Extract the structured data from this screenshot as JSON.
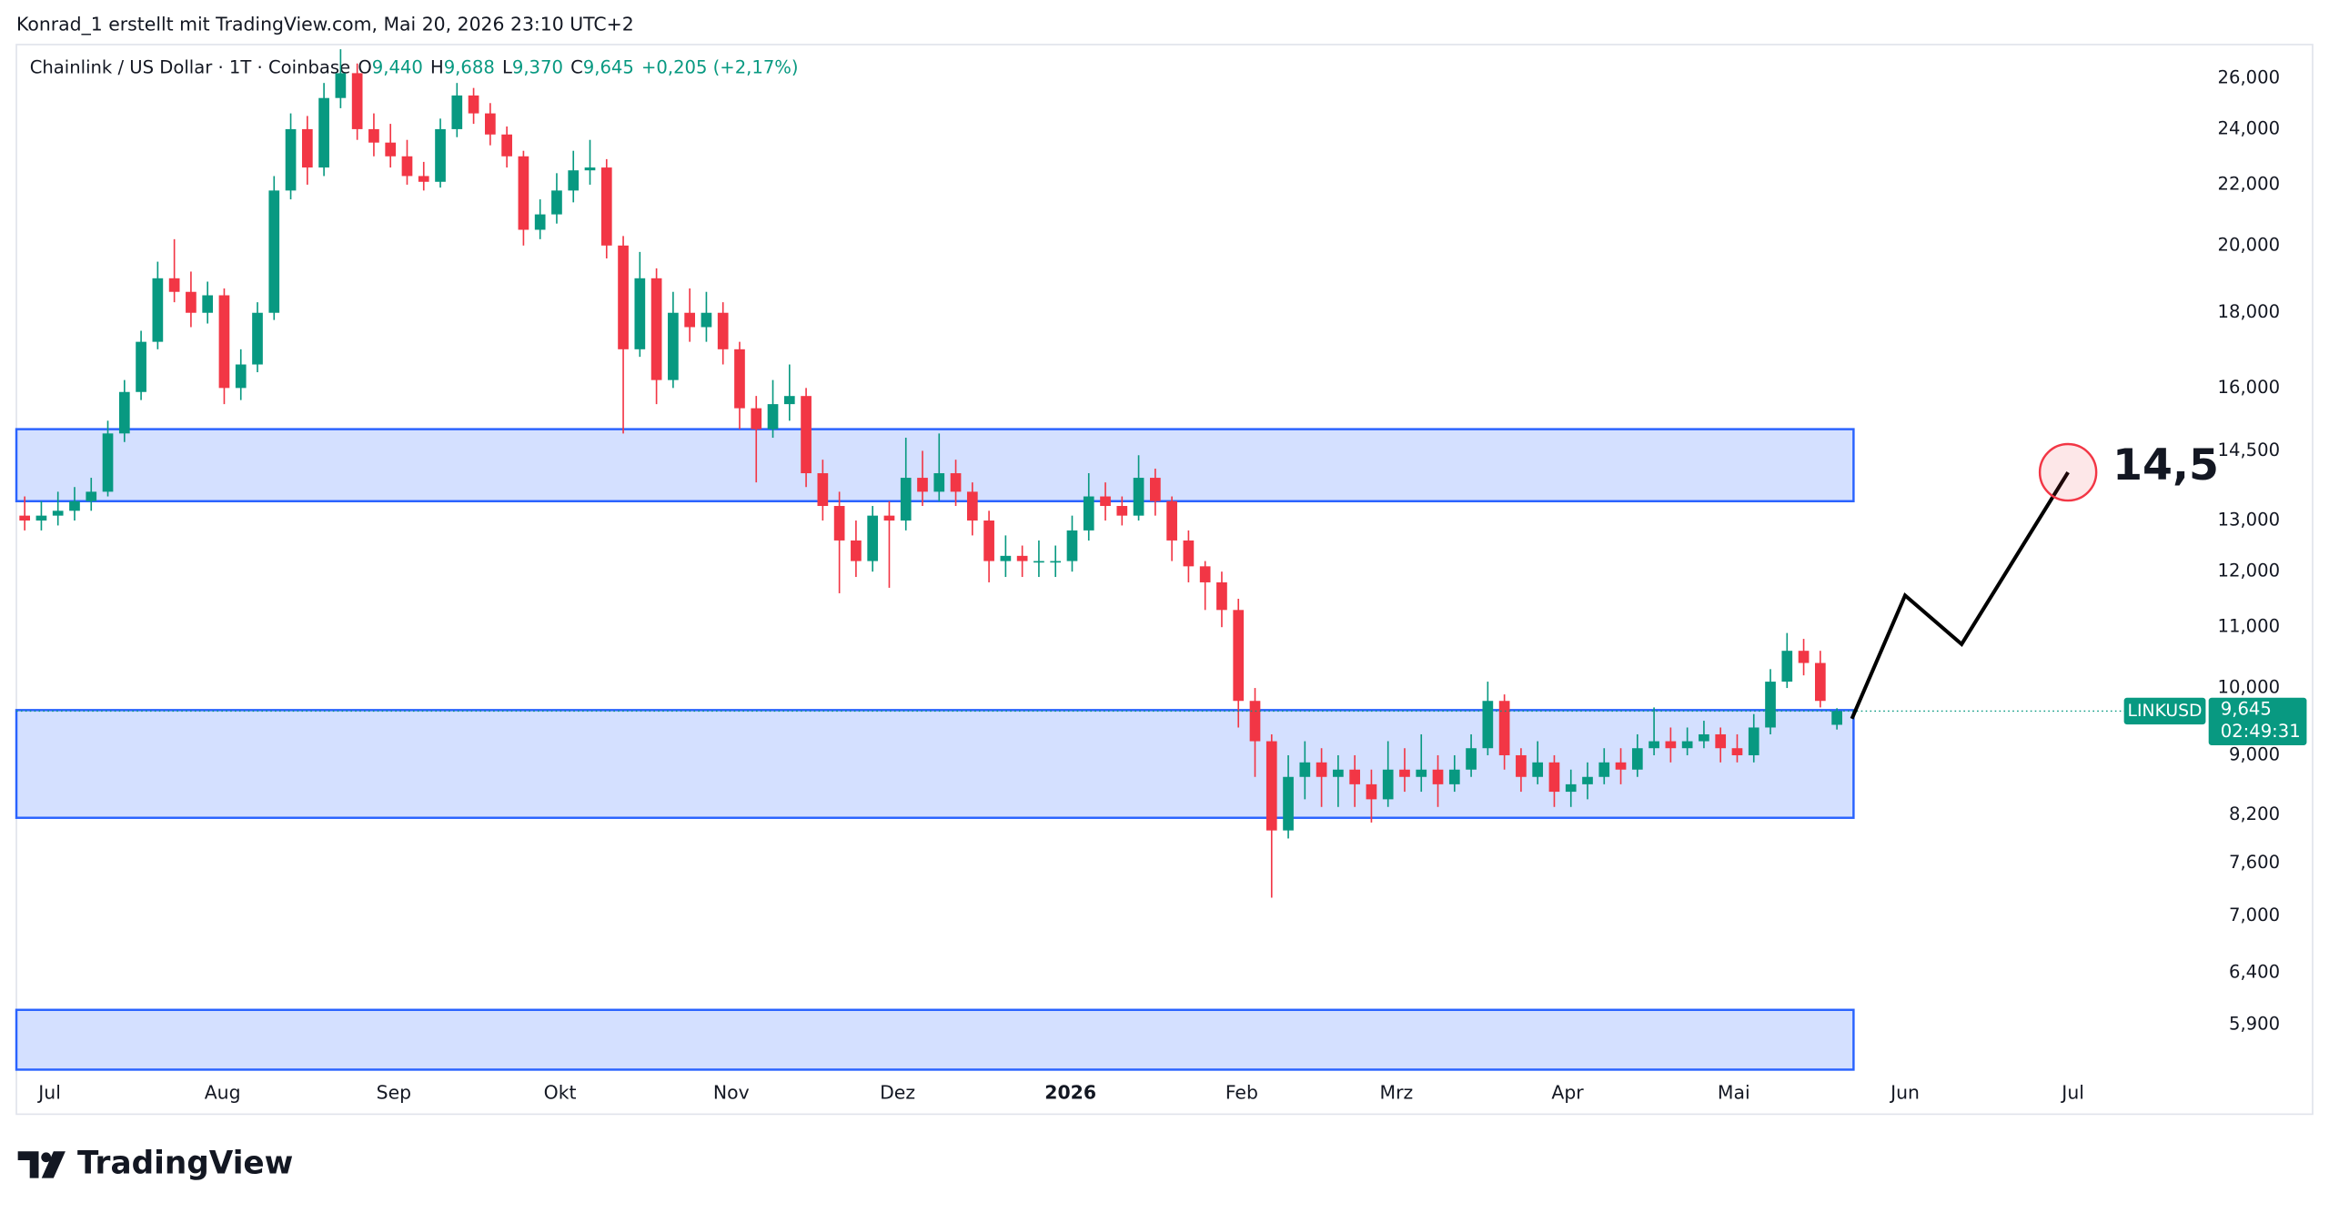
{
  "header": "Konrad_1 erstellt mit TradingView.com, Mai 20, 2026 23:10 UTC+2",
  "branding": "TradingView",
  "chart_data": {
    "type": "candlestick",
    "legend": {
      "symbol": "Chainlink / US Dollar · 1T · Coinbase",
      "open_label": "O",
      "open": "9,440",
      "high_label": "H",
      "high": "9,688",
      "low_label": "L",
      "low": "9,370",
      "close_label": "C",
      "close": "9,645",
      "change": "+0,205 (+2,17%)"
    },
    "price_tag": {
      "symbol": "LINKUSD",
      "price": "9,645",
      "countdown": "02:49:31"
    },
    "colors": {
      "up": "#089981",
      "down": "#f23645",
      "zone": "#2962ff",
      "projection": "#000000",
      "target": "#f23645"
    },
    "log_scale": true,
    "xlim": [
      -0.5,
      131
    ],
    "xticks": [
      {
        "value": 1.5,
        "label": "Jul"
      },
      {
        "value": 11.9,
        "label": "Aug"
      },
      {
        "value": 22.2,
        "label": "Sep"
      },
      {
        "value": 32.2,
        "label": "Okt"
      },
      {
        "value": 42.5,
        "label": "Nov"
      },
      {
        "value": 52.5,
        "label": "Dez"
      },
      {
        "value": 62.9,
        "label": "2026"
      },
      {
        "value": 73.2,
        "label": "Feb"
      },
      {
        "value": 82.5,
        "label": "Mrz"
      },
      {
        "value": 92.8,
        "label": "Apr"
      },
      {
        "value": 102.8,
        "label": "Mai"
      },
      {
        "value": 113.1,
        "label": "Jun"
      },
      {
        "value": 123.2,
        "label": "Jul"
      }
    ],
    "ylim": [
      5.5,
      27.4
    ],
    "yticks": [
      {
        "value": 26,
        "label": "26,000"
      },
      {
        "value": 24,
        "label": "24,000"
      },
      {
        "value": 22,
        "label": "22,000"
      },
      {
        "value": 20,
        "label": "20,000"
      },
      {
        "value": 18,
        "label": "18,000"
      },
      {
        "value": 16,
        "label": "16,000"
      },
      {
        "value": 14.5,
        "label": "14,500"
      },
      {
        "value": 13,
        "label": "13,000"
      },
      {
        "value": 12,
        "label": "12,000"
      },
      {
        "value": 11,
        "label": "11,000"
      },
      {
        "value": 10,
        "label": "10,000"
      },
      {
        "value": 9,
        "label": "9,000"
      },
      {
        "value": 8.2,
        "label": "8,200"
      },
      {
        "value": 7.6,
        "label": "7,600"
      },
      {
        "value": 7,
        "label": "7,000"
      },
      {
        "value": 6.4,
        "label": "6,400"
      },
      {
        "value": 5.9,
        "label": "5,900"
      }
    ],
    "zones": [
      {
        "low": 13.4,
        "high": 15.0
      },
      {
        "low": 8.16,
        "high": 9.66
      },
      {
        "low": 5.5,
        "high": 6.04
      }
    ],
    "zone_end": 110,
    "projection": {
      "x": [
        109.9,
        113.1,
        116.5,
        122.9
      ],
      "values": [
        9.53,
        11.56,
        10.71,
        14.02
      ],
      "target_label": "14,5"
    },
    "candles": [
      [
        13.1,
        13.5,
        12.8,
        13.0
      ],
      [
        13.0,
        13.4,
        12.8,
        13.1
      ],
      [
        13.1,
        13.6,
        12.9,
        13.2
      ],
      [
        13.2,
        13.7,
        13.0,
        13.4
      ],
      [
        13.4,
        13.9,
        13.2,
        13.6
      ],
      [
        13.6,
        15.2,
        13.5,
        14.9
      ],
      [
        14.9,
        16.2,
        14.7,
        15.9
      ],
      [
        15.9,
        17.5,
        15.7,
        17.2
      ],
      [
        17.2,
        19.5,
        17.0,
        19.0
      ],
      [
        19.0,
        20.2,
        18.3,
        18.6
      ],
      [
        18.6,
        19.2,
        17.6,
        18.0
      ],
      [
        18.0,
        18.9,
        17.7,
        18.5
      ],
      [
        18.5,
        18.7,
        15.6,
        16.0
      ],
      [
        16.0,
        17.0,
        15.7,
        16.6
      ],
      [
        16.6,
        18.3,
        16.4,
        18.0
      ],
      [
        18.0,
        22.3,
        17.8,
        21.8
      ],
      [
        21.8,
        24.6,
        21.5,
        24.0
      ],
      [
        24.0,
        24.5,
        22.0,
        22.6
      ],
      [
        22.6,
        25.8,
        22.3,
        25.2
      ],
      [
        25.2,
        27.2,
        24.8,
        26.2
      ],
      [
        26.2,
        26.6,
        23.6,
        24.0
      ],
      [
        24.0,
        24.6,
        23.0,
        23.5
      ],
      [
        23.5,
        24.2,
        22.6,
        23.0
      ],
      [
        23.0,
        23.6,
        22.0,
        22.3
      ],
      [
        22.3,
        22.8,
        21.8,
        22.1
      ],
      [
        22.1,
        24.4,
        21.9,
        24.0
      ],
      [
        24.0,
        25.8,
        23.7,
        25.3
      ],
      [
        25.3,
        25.6,
        24.2,
        24.6
      ],
      [
        24.6,
        25.0,
        23.4,
        23.8
      ],
      [
        23.8,
        24.1,
        22.6,
        23.0
      ],
      [
        23.0,
        23.2,
        20.0,
        20.5
      ],
      [
        20.5,
        21.5,
        20.2,
        21.0
      ],
      [
        21.0,
        22.4,
        20.7,
        21.8
      ],
      [
        21.8,
        23.2,
        21.4,
        22.5
      ],
      [
        22.5,
        23.6,
        22.0,
        22.6
      ],
      [
        22.6,
        22.9,
        19.6,
        20.0
      ],
      [
        20.0,
        20.3,
        14.9,
        17.0
      ],
      [
        17.0,
        19.8,
        16.8,
        19.0
      ],
      [
        19.0,
        19.3,
        15.6,
        16.2
      ],
      [
        16.2,
        18.6,
        16.0,
        18.0
      ],
      [
        18.0,
        18.7,
        17.2,
        17.6
      ],
      [
        17.6,
        18.6,
        17.2,
        18.0
      ],
      [
        18.0,
        18.3,
        16.6,
        17.0
      ],
      [
        17.0,
        17.2,
        15.0,
        15.5
      ],
      [
        15.5,
        15.8,
        13.8,
        15.0
      ],
      [
        15.0,
        16.2,
        14.8,
        15.6
      ],
      [
        15.6,
        16.6,
        15.2,
        15.8
      ],
      [
        15.8,
        16.0,
        13.7,
        14.0
      ],
      [
        14.0,
        14.3,
        13.0,
        13.3
      ],
      [
        13.3,
        13.6,
        11.6,
        12.6
      ],
      [
        12.6,
        13.0,
        11.9,
        12.2
      ],
      [
        12.2,
        13.3,
        12.0,
        13.1
      ],
      [
        13.1,
        13.4,
        11.7,
        13.0
      ],
      [
        13.0,
        14.8,
        12.8,
        13.9
      ],
      [
        13.9,
        14.5,
        13.3,
        13.6
      ],
      [
        13.6,
        14.9,
        13.4,
        14.0
      ],
      [
        14.0,
        14.3,
        13.3,
        13.6
      ],
      [
        13.6,
        13.8,
        12.7,
        13.0
      ],
      [
        13.0,
        13.2,
        11.8,
        12.2
      ],
      [
        12.2,
        12.7,
        11.9,
        12.3
      ],
      [
        12.3,
        12.5,
        11.9,
        12.2
      ],
      [
        12.2,
        12.6,
        11.9,
        12.2
      ],
      [
        12.2,
        12.5,
        11.9,
        12.2
      ],
      [
        12.2,
        13.1,
        12.0,
        12.8
      ],
      [
        12.8,
        14.0,
        12.6,
        13.5
      ],
      [
        13.5,
        13.8,
        13.0,
        13.3
      ],
      [
        13.3,
        13.5,
        12.9,
        13.1
      ],
      [
        13.1,
        14.4,
        13.0,
        13.9
      ],
      [
        13.9,
        14.1,
        13.1,
        13.4
      ],
      [
        13.4,
        13.5,
        12.2,
        12.6
      ],
      [
        12.6,
        12.8,
        11.8,
        12.1
      ],
      [
        12.1,
        12.2,
        11.3,
        11.8
      ],
      [
        11.8,
        12.0,
        11.0,
        11.3
      ],
      [
        11.3,
        11.5,
        9.4,
        9.8
      ],
      [
        9.8,
        10.0,
        8.7,
        9.2
      ],
      [
        9.2,
        9.3,
        7.2,
        8.0
      ],
      [
        8.0,
        9.0,
        7.9,
        8.7
      ],
      [
        8.7,
        9.2,
        8.4,
        8.9
      ],
      [
        8.9,
        9.1,
        8.3,
        8.7
      ],
      [
        8.7,
        9.0,
        8.3,
        8.8
      ],
      [
        8.8,
        9.0,
        8.3,
        8.6
      ],
      [
        8.6,
        8.8,
        8.1,
        8.4
      ],
      [
        8.4,
        9.2,
        8.3,
        8.8
      ],
      [
        8.8,
        9.1,
        8.5,
        8.7
      ],
      [
        8.7,
        9.3,
        8.5,
        8.8
      ],
      [
        8.8,
        9.0,
        8.3,
        8.6
      ],
      [
        8.6,
        9.0,
        8.5,
        8.8
      ],
      [
        8.8,
        9.3,
        8.7,
        9.1
      ],
      [
        9.1,
        10.1,
        9.0,
        9.8
      ],
      [
        9.8,
        9.9,
        8.8,
        9.0
      ],
      [
        9.0,
        9.1,
        8.5,
        8.7
      ],
      [
        8.7,
        9.2,
        8.6,
        8.9
      ],
      [
        8.9,
        9.0,
        8.3,
        8.5
      ],
      [
        8.5,
        8.8,
        8.3,
        8.6
      ],
      [
        8.6,
        8.9,
        8.4,
        8.7
      ],
      [
        8.7,
        9.1,
        8.6,
        8.9
      ],
      [
        8.9,
        9.1,
        8.6,
        8.8
      ],
      [
        8.8,
        9.3,
        8.7,
        9.1
      ],
      [
        9.1,
        9.7,
        9.0,
        9.2
      ],
      [
        9.2,
        9.4,
        8.9,
        9.1
      ],
      [
        9.1,
        9.4,
        9.0,
        9.2
      ],
      [
        9.2,
        9.5,
        9.1,
        9.3
      ],
      [
        9.3,
        9.4,
        8.9,
        9.1
      ],
      [
        9.1,
        9.3,
        8.9,
        9.0
      ],
      [
        9.0,
        9.6,
        8.9,
        9.4
      ],
      [
        9.4,
        10.3,
        9.3,
        10.1
      ],
      [
        10.1,
        10.9,
        10.0,
        10.6
      ],
      [
        10.6,
        10.8,
        10.2,
        10.4
      ],
      [
        10.4,
        10.6,
        9.7,
        9.8
      ],
      [
        9.44,
        9.688,
        9.37,
        9.645
      ]
    ]
  }
}
